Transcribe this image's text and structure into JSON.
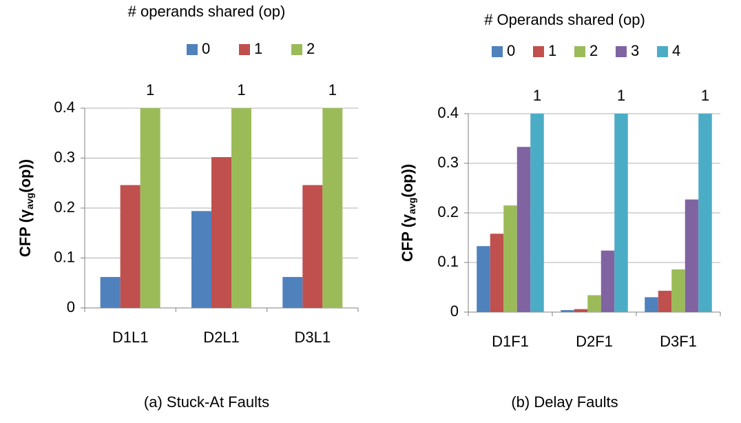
{
  "chart_data": [
    {
      "type": "bar",
      "legend_title": "# operands shared (op)",
      "y_label": {
        "main": "CFP (γ",
        "sub": "avg",
        "end": "(op))"
      },
      "caption": "(a) Stuck-At Faults",
      "categories": [
        "D1L1",
        "D2L1",
        "D3L1"
      ],
      "series": [
        {
          "name": "0",
          "color": "#4f81bd",
          "values": [
            0.062,
            0.194,
            0.062
          ]
        },
        {
          "name": "1",
          "color": "#c0504d",
          "values": [
            0.246,
            0.302,
            0.246
          ]
        },
        {
          "name": "2",
          "color": "#9bbb59",
          "values": [
            1,
            1,
            1
          ],
          "value_labels": [
            "1",
            "1",
            "1"
          ]
        }
      ],
      "ylim": [
        0,
        0.4
      ],
      "yticks": [
        0,
        0.1,
        0.2,
        0.3,
        0.4
      ],
      "grid": true
    },
    {
      "type": "bar",
      "legend_title": "# Operands shared (op)",
      "y_label": {
        "main": "CFP (γ",
        "sub": "avg",
        "end": "(op))"
      },
      "caption": "(b) Delay Faults",
      "categories": [
        "D1F1",
        "D2F1",
        "D3F1"
      ],
      "series": [
        {
          "name": "0",
          "color": "#4f81bd",
          "values": [
            0.133,
            0.004,
            0.03
          ]
        },
        {
          "name": "1",
          "color": "#c0504d",
          "values": [
            0.158,
            0.006,
            0.043
          ]
        },
        {
          "name": "2",
          "color": "#9bbb59",
          "values": [
            0.215,
            0.034,
            0.086
          ]
        },
        {
          "name": "3",
          "color": "#8064a2",
          "values": [
            0.333,
            0.124,
            0.227
          ]
        },
        {
          "name": "4",
          "color": "#4bacc6",
          "values": [
            1,
            1,
            1
          ],
          "value_labels": [
            "1",
            "1",
            "1"
          ]
        }
      ],
      "ylim": [
        0,
        0.4
      ],
      "yticks": [
        0,
        0.1,
        0.2,
        0.3,
        0.4
      ],
      "grid": true
    }
  ]
}
